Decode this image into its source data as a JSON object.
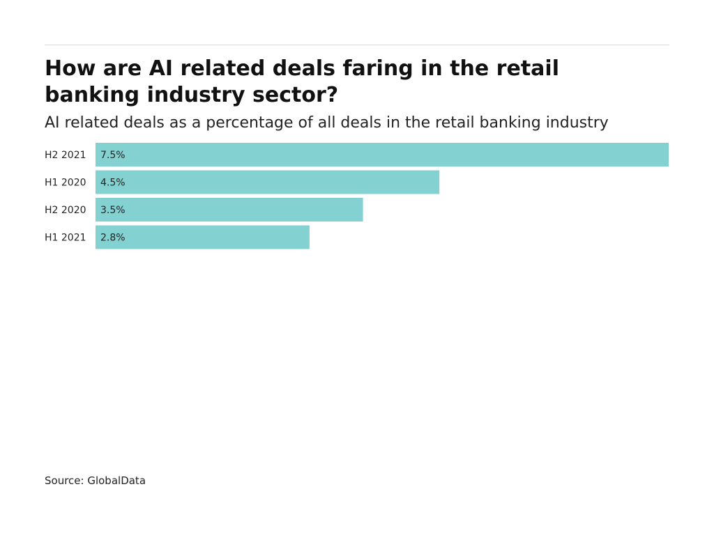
{
  "header": {
    "title": "How are AI related deals faring in the retail banking industry sector?",
    "subtitle": "AI related deals as a percentage of all deals in the retail banking industry"
  },
  "footer": {
    "source": "Source: GlobalData"
  },
  "chart_data": {
    "type": "bar",
    "orientation": "horizontal",
    "categories": [
      "H2 2021",
      "H1 2020",
      "H2 2020",
      "H1 2021"
    ],
    "values": [
      7.5,
      4.5,
      3.5,
      2.8
    ],
    "value_labels": [
      "7.5%",
      "4.5%",
      "3.5%",
      "2.8%"
    ],
    "title": "How are AI related deals faring in the retail banking industry sector?",
    "subtitle": "AI related deals as a percentage of all deals in the retail banking industry",
    "xlim": [
      0,
      7.5
    ],
    "grid": false,
    "bar_color": "#84d1d1"
  }
}
